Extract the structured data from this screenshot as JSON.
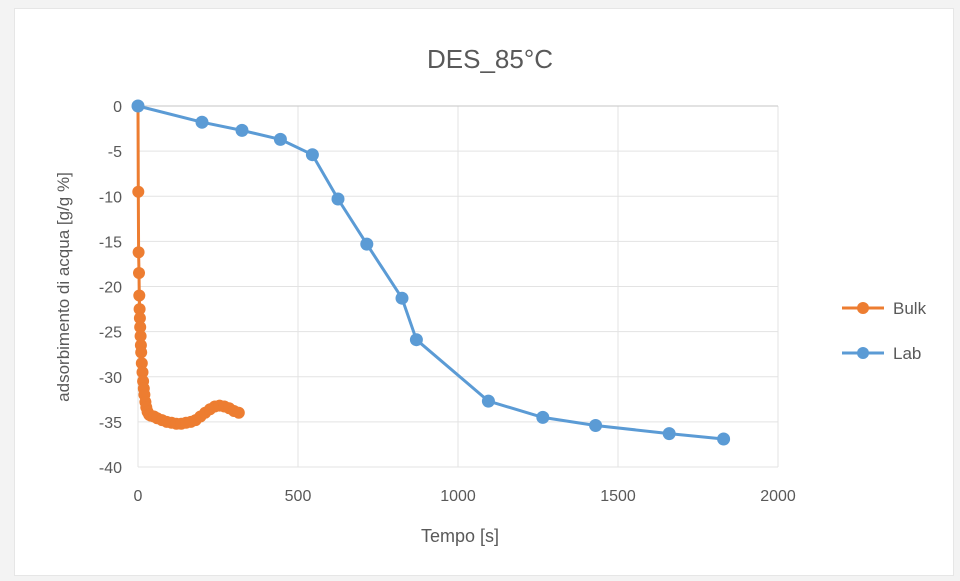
{
  "chart_data": {
    "type": "scatter",
    "title": "DES_85°C",
    "xlabel": "Tempo [s]",
    "ylabel": "adsorbimento di acqua [g/g %]",
    "xlim": [
      0,
      2000
    ],
    "ylim": [
      -40,
      0
    ],
    "x_ticks": [
      "0",
      "500",
      "1000",
      "1500",
      "2000"
    ],
    "y_ticks": [
      "0",
      "-5",
      "-10",
      "-15",
      "-20",
      "-25",
      "-30",
      "-35",
      "-40"
    ],
    "grid": true,
    "legend_position": "right",
    "series": [
      {
        "name": "Bulk",
        "color": "#ed7d31",
        "x": [
          0,
          1,
          2,
          3,
          4,
          5,
          6,
          7,
          8,
          9,
          10,
          12,
          14,
          16,
          18,
          20,
          23,
          26,
          30,
          35,
          40,
          50,
          60,
          75,
          90,
          105,
          120,
          135,
          150,
          165,
          180,
          195,
          210,
          225,
          240,
          255,
          270,
          285,
          300,
          315
        ],
        "y": [
          0,
          -9.5,
          -16.2,
          -18.5,
          -21.0,
          -22.5,
          -23.5,
          -24.5,
          -25.5,
          -26.5,
          -27.3,
          -28.5,
          -29.5,
          -30.5,
          -31.3,
          -32.0,
          -32.8,
          -33.4,
          -33.9,
          -34.2,
          -34.3,
          -34.4,
          -34.6,
          -34.8,
          -35.0,
          -35.1,
          -35.2,
          -35.2,
          -35.1,
          -35.0,
          -34.8,
          -34.4,
          -34.0,
          -33.6,
          -33.3,
          -33.2,
          -33.3,
          -33.5,
          -33.8,
          -34.0
        ]
      },
      {
        "name": "Lab",
        "color": "#5b9bd5",
        "x": [
          0,
          200,
          325,
          445,
          545,
          625,
          715,
          825,
          870,
          1095,
          1265,
          1430,
          1660,
          1830
        ],
        "y": [
          0,
          -1.8,
          -2.7,
          -3.7,
          -5.4,
          -10.3,
          -15.3,
          -21.3,
          -25.9,
          -32.7,
          -34.5,
          -35.4,
          -36.3,
          -36.9
        ]
      }
    ]
  }
}
